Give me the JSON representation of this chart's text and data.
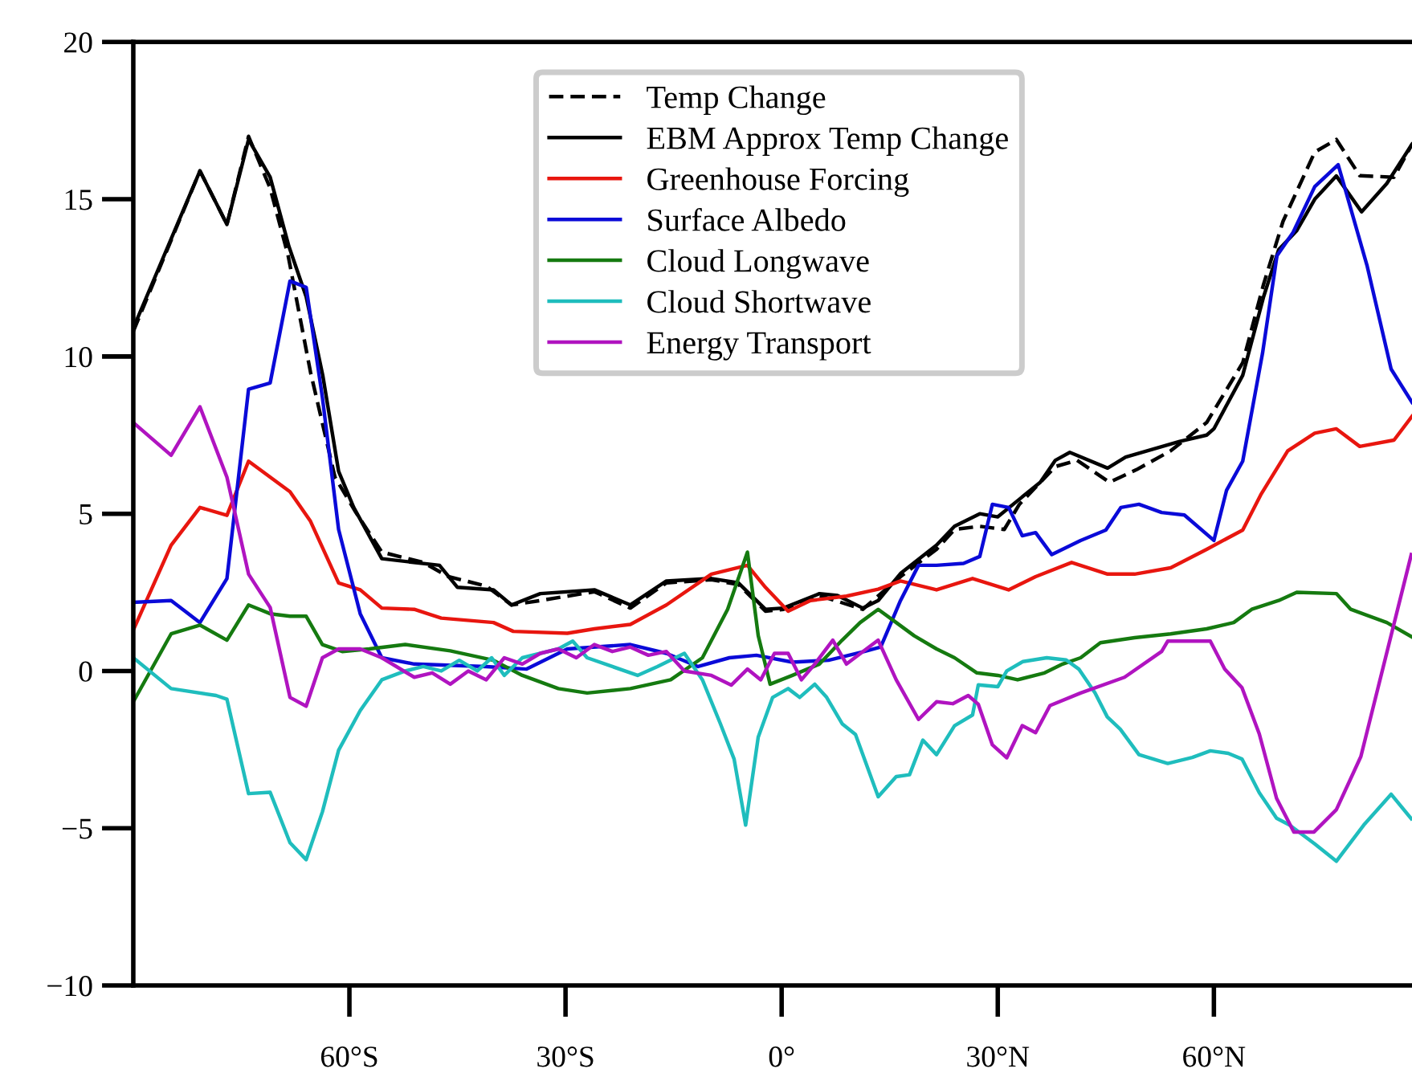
{
  "chart_data": {
    "type": "line",
    "xlim": [
      -90,
      87.5
    ],
    "ylim": [
      -10,
      20
    ],
    "xticks": [
      {
        "value": -60,
        "label": "60°S"
      },
      {
        "value": -30,
        "label": "30°S"
      },
      {
        "value": 0,
        "label": "0°"
      },
      {
        "value": 30,
        "label": "30°N"
      },
      {
        "value": 60,
        "label": "60°N"
      }
    ],
    "yticks": [
      {
        "value": -10,
        "label": "−10"
      },
      {
        "value": -5,
        "label": "−5"
      },
      0,
      5,
      10,
      15,
      20
    ],
    "grid": false,
    "legend": "top",
    "marker": "none",
    "series": [
      {
        "name": "Temp Change",
        "color": "#000000",
        "line_style": "dashed",
        "x": [
          -90,
          -80.75,
          -77,
          -74,
          -71,
          -68.5,
          -65.4,
          -62,
          -59.1,
          -55.5,
          -49.75,
          -46.25,
          -41,
          -37.5,
          -33.5,
          -26,
          -21,
          -16,
          -9.75,
          -6,
          -2.25,
          0.25,
          5.25,
          11.25,
          16.5,
          21.5,
          24,
          27.5,
          30.9,
          33,
          38,
          41,
          45.5,
          49.25,
          54,
          59,
          64,
          66.9,
          69.6,
          74,
          77,
          80.25,
          85,
          87.5
        ],
        "values": [
          10.8,
          15.9,
          14.2,
          17.0,
          15.35,
          13.2,
          9.5,
          6.16,
          5.04,
          3.78,
          3.45,
          3.0,
          2.7,
          2.1,
          2.24,
          2.52,
          2.0,
          2.8,
          2.9,
          2.75,
          1.9,
          1.96,
          2.4,
          1.96,
          3.0,
          3.87,
          4.5,
          4.6,
          4.5,
          5.3,
          6.5,
          6.7,
          6.0,
          6.4,
          7.0,
          7.9,
          9.8,
          12.3,
          14.3,
          16.5,
          16.9,
          15.75,
          15.7,
          16.75
        ]
      },
      {
        "name": "EBM Approx Temp Change",
        "color": "#000000",
        "line_style": "solid",
        "x": [
          -90,
          -80.75,
          -77,
          -74,
          -71,
          -68.4,
          -66,
          -63.7,
          -61.5,
          -59.4,
          -55.5,
          -47.5,
          -45,
          -40,
          -37.5,
          -33.5,
          -26,
          -21,
          -16,
          -9.75,
          -6,
          -2.25,
          0.25,
          5.25,
          7.75,
          11.25,
          13.4,
          16.5,
          21.5,
          24,
          27.5,
          30,
          33,
          35.9,
          38,
          40,
          45.25,
          47.75,
          55.25,
          59,
          60,
          64,
          66.9,
          69,
          71.5,
          74,
          77,
          80.5,
          84,
          87.5
        ],
        "values": [
          10.9,
          15.9,
          14.2,
          16.9,
          15.7,
          13.5,
          11.9,
          9.4,
          6.35,
          5.2,
          3.57,
          3.36,
          2.66,
          2.58,
          2.1,
          2.46,
          2.58,
          2.1,
          2.86,
          2.94,
          2.8,
          1.96,
          2.0,
          2.46,
          2.4,
          2.0,
          2.24,
          3.1,
          4.0,
          4.6,
          5.0,
          4.9,
          5.46,
          6.0,
          6.7,
          6.95,
          6.45,
          6.8,
          7.3,
          7.5,
          7.7,
          9.4,
          11.9,
          13.4,
          14.0,
          15.0,
          15.74,
          14.6,
          15.5,
          16.75
        ]
      },
      {
        "name": "Greenhouse Forcing",
        "color": "#e8160f",
        "line_style": "solid",
        "x": [
          -90,
          -84.75,
          -80.75,
          -77,
          -74,
          -68.25,
          -65.4,
          -61.5,
          -58.5,
          -55.5,
          -51,
          -47.25,
          -40,
          -37.25,
          -29.75,
          -26,
          -21,
          -16,
          -9.75,
          -4.75,
          -2.25,
          0.9,
          4,
          9,
          13.4,
          16.5,
          21.5,
          26.5,
          31.5,
          35.25,
          40.25,
          45.25,
          49,
          54,
          59,
          64,
          66.5,
          70.25,
          74,
          77,
          80.25,
          85,
          87.5
        ],
        "values": [
          1.3,
          4.0,
          5.2,
          4.95,
          6.67,
          5.7,
          4.76,
          2.8,
          2.58,
          2.0,
          1.96,
          1.68,
          1.54,
          1.26,
          1.2,
          1.34,
          1.48,
          2.1,
          3.08,
          3.36,
          2.66,
          1.9,
          2.24,
          2.38,
          2.6,
          2.86,
          2.58,
          2.94,
          2.58,
          3.0,
          3.45,
          3.08,
          3.08,
          3.28,
          3.87,
          4.48,
          5.6,
          7.0,
          7.56,
          7.7,
          7.14,
          7.34,
          8.1
        ]
      },
      {
        "name": "Surface Albedo",
        "color": "#0a0ad8",
        "line_style": "solid",
        "x": [
          -90,
          -84.75,
          -80.75,
          -77,
          -74,
          -71,
          -68.25,
          -66,
          -63.75,
          -61.5,
          -58.5,
          -55.5,
          -51,
          -41,
          -35.4,
          -29.75,
          -21,
          -16,
          -11.6,
          -7.25,
          -3.5,
          1.5,
          6.5,
          11.5,
          13.75,
          16.5,
          19,
          21.5,
          25.25,
          27.5,
          29.25,
          31.5,
          33.4,
          35.25,
          37.5,
          41.5,
          45,
          47.1,
          49.6,
          52.75,
          55.9,
          60,
          61.75,
          64,
          66.75,
          68.75,
          71,
          74,
          77.25,
          81.25,
          84.6,
          87.5
        ],
        "values": [
          2.18,
          2.24,
          1.54,
          2.94,
          8.96,
          9.16,
          12.4,
          12.2,
          8.7,
          4.5,
          1.82,
          0.42,
          0.22,
          0.14,
          0.06,
          0.7,
          0.84,
          0.56,
          0.14,
          0.42,
          0.5,
          0.28,
          0.34,
          0.62,
          0.76,
          2.24,
          3.36,
          3.36,
          3.42,
          3.64,
          5.3,
          5.2,
          4.3,
          4.4,
          3.7,
          4.15,
          4.48,
          5.2,
          5.3,
          5.04,
          4.96,
          4.15,
          5.74,
          6.67,
          10.1,
          13.2,
          13.95,
          15.4,
          16.1,
          12.9,
          9.6,
          8.54
        ]
      },
      {
        "name": "Cloud Longwave",
        "color": "#157a10",
        "line_style": "solid",
        "x": [
          -90,
          -84.75,
          -80.75,
          -77,
          -74,
          -71,
          -68.25,
          -66,
          -63.75,
          -61,
          -57.25,
          -52.25,
          -46,
          -40,
          -36,
          -31,
          -27,
          -21,
          -15.4,
          -11,
          -7.5,
          -4.75,
          -3.25,
          -1.6,
          1.5,
          5.25,
          8.4,
          10.9,
          13.4,
          15.9,
          18.4,
          21.5,
          24,
          27.1,
          30,
          32.75,
          36.5,
          39,
          41.5,
          44.25,
          49,
          54,
          59,
          62.75,
          65.25,
          69,
          71.5,
          77,
          79,
          84,
          87.5
        ],
        "values": [
          -0.98,
          1.18,
          1.46,
          0.98,
          2.1,
          1.82,
          1.74,
          1.74,
          0.84,
          0.62,
          0.7,
          0.84,
          0.64,
          0.34,
          -0.14,
          -0.56,
          -0.7,
          -0.56,
          -0.28,
          0.42,
          1.96,
          3.78,
          1.12,
          -0.42,
          -0.14,
          0.22,
          0.98,
          1.54,
          1.96,
          1.54,
          1.12,
          0.7,
          0.42,
          -0.06,
          -0.14,
          -0.28,
          -0.06,
          0.22,
          0.42,
          0.9,
          1.06,
          1.18,
          1.34,
          1.54,
          1.96,
          2.24,
          2.5,
          2.46,
          1.96,
          1.54,
          1.08
        ]
      },
      {
        "name": "Cloud Shortwave",
        "color": "#1fbdbd",
        "line_style": "solid",
        "x": [
          -90,
          -84.75,
          -78.5,
          -77,
          -74,
          -71,
          -68.25,
          -66,
          -63.75,
          -61.5,
          -58.5,
          -55.5,
          -52.25,
          -49.75,
          -47.25,
          -44.75,
          -42.25,
          -40.25,
          -38.5,
          -36,
          -31,
          -29,
          -27,
          -23.5,
          -20,
          -17.25,
          -13.5,
          -11,
          -8.5,
          -6.6,
          -5,
          -3.25,
          -1.25,
          0.9,
          2.5,
          4.6,
          6.25,
          8.4,
          10.25,
          13.4,
          15.9,
          17.75,
          19.6,
          21.5,
          24,
          26.5,
          27.3,
          30,
          31.25,
          33.5,
          36.8,
          39.5,
          41.25,
          43.5,
          45.2,
          47,
          49.6,
          53.6,
          57,
          59.5,
          62,
          63.9,
          66.3,
          68.7,
          70.5,
          74,
          77,
          80.8,
          84.6,
          87.4
        ],
        "values": [
          0.42,
          -0.56,
          -0.78,
          -0.9,
          -3.9,
          -3.86,
          -5.46,
          -6.0,
          -4.48,
          -2.52,
          -1.26,
          -0.28,
          0,
          0.14,
          0,
          0.34,
          0,
          0.42,
          -0.14,
          0.42,
          0.7,
          0.95,
          0.42,
          0.14,
          -0.14,
          0.14,
          0.56,
          -0.28,
          -1.68,
          -2.8,
          -4.9,
          -2.1,
          -0.84,
          -0.56,
          -0.84,
          -0.42,
          -0.84,
          -1.68,
          -2.02,
          -4.0,
          -3.36,
          -3.3,
          -2.2,
          -2.66,
          -1.74,
          -1.4,
          -0.44,
          -0.5,
          0,
          0.3,
          0.42,
          0.35,
          0.06,
          -0.7,
          -1.46,
          -1.85,
          -2.66,
          -2.94,
          -2.75,
          -2.54,
          -2.62,
          -2.8,
          -3.87,
          -4.68,
          -4.9,
          -5.5,
          -6.05,
          -4.9,
          -3.92,
          -4.7
        ]
      },
      {
        "name": "Energy Transport",
        "color": "#b014c0",
        "line_style": "solid",
        "x": [
          -90,
          -84.75,
          -80.75,
          -77,
          -74,
          -71,
          -68.25,
          -66,
          -63.75,
          -61.5,
          -58.5,
          -55.5,
          -51,
          -48.5,
          -46,
          -43.5,
          -41,
          -38.5,
          -36,
          -33.5,
          -31,
          -28.5,
          -26,
          -23.5,
          -21,
          -18.5,
          -16,
          -13.5,
          -9.75,
          -7,
          -4.75,
          -2.9,
          -1,
          0.9,
          2.75,
          4.6,
          7.1,
          9,
          13.4,
          15.9,
          19,
          21.5,
          23.75,
          25.9,
          27.3,
          29.25,
          31.25,
          33.4,
          35.25,
          37.25,
          41.5,
          47.6,
          52.75,
          53.6,
          59.5,
          61.5,
          63.9,
          66.3,
          68.7,
          71.1,
          73.9,
          77,
          80.4,
          87.4
        ],
        "values": [
          7.9,
          6.86,
          8.4,
          6.16,
          3.08,
          2.02,
          -0.84,
          -1.12,
          0.42,
          0.7,
          0.7,
          0.42,
          -0.2,
          -0.06,
          -0.42,
          0,
          -0.28,
          0.42,
          0.22,
          0.56,
          0.7,
          0.42,
          0.84,
          0.62,
          0.76,
          0.5,
          0.62,
          0,
          -0.14,
          -0.45,
          0.06,
          -0.28,
          0.56,
          0.56,
          -0.28,
          0.22,
          0.98,
          0.22,
          0.98,
          -0.28,
          -1.54,
          -0.98,
          -1.04,
          -0.78,
          -1.06,
          -2.35,
          -2.76,
          -1.74,
          -1.96,
          -1.1,
          -0.7,
          -0.2,
          0.62,
          0.95,
          0.95,
          0.06,
          -0.53,
          -2.0,
          -4.05,
          -5.12,
          -5.12,
          -4.41,
          -2.72,
          3.7
        ]
      }
    ]
  }
}
